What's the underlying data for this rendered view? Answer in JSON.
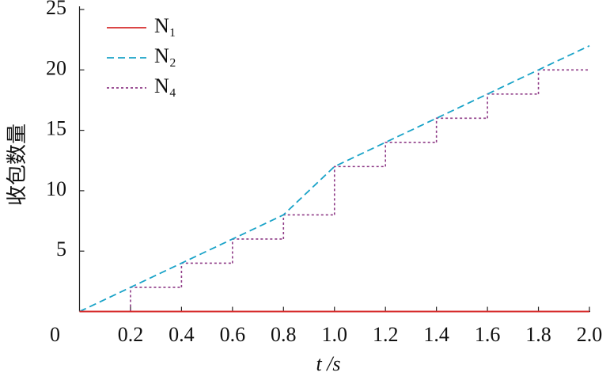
{
  "chart_data": {
    "type": "line",
    "xlabel": "t /s",
    "ylabel": "收包数量",
    "xlim": [
      0,
      2.0
    ],
    "ylim": [
      0,
      25
    ],
    "xticks": [
      0.2,
      0.4,
      0.6,
      0.8,
      {
        "value": 1.0,
        "label": "1.0"
      },
      1.2,
      1.4,
      1.6,
      1.8,
      {
        "value": 2.0,
        "label": "2.0"
      }
    ],
    "yticks": [
      0,
      5,
      10,
      15,
      20,
      25
    ],
    "legend": "upper-left",
    "series": [
      {
        "name": "N₁",
        "color": "#d62b2b",
        "style": "solid",
        "x": [
          0,
          2.0
        ],
        "values": [
          0,
          0
        ]
      },
      {
        "name": "N₂",
        "color": "#1aa3c8",
        "style": "dashed",
        "x": [
          0,
          0.2,
          0.4,
          0.6,
          0.8,
          1.0,
          1.2,
          1.4,
          1.6,
          1.8,
          2.0
        ],
        "values": [
          0,
          2,
          4,
          6,
          8,
          12,
          14,
          16,
          18,
          20,
          22
        ]
      },
      {
        "name": "N₄",
        "color": "#8e3a86",
        "style": "dotted",
        "step": "post",
        "x": [
          0,
          0.2,
          0.4,
          0.6,
          0.8,
          1.0,
          1.2,
          1.4,
          1.6,
          1.8,
          2.0
        ],
        "values": [
          0,
          2,
          4,
          6,
          8,
          12,
          14,
          16,
          18,
          20,
          20
        ]
      }
    ]
  }
}
